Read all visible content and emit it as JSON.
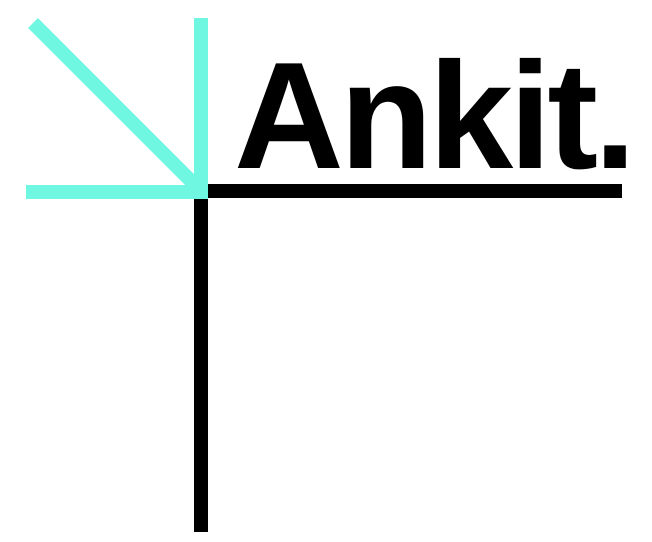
{
  "logo": {
    "wordmark": "Ankit.",
    "colors": {
      "accent": "#6FF7E2",
      "ink": "#000000",
      "background": "#FFFFFF"
    },
    "icon": "corner-arrow-mark"
  }
}
